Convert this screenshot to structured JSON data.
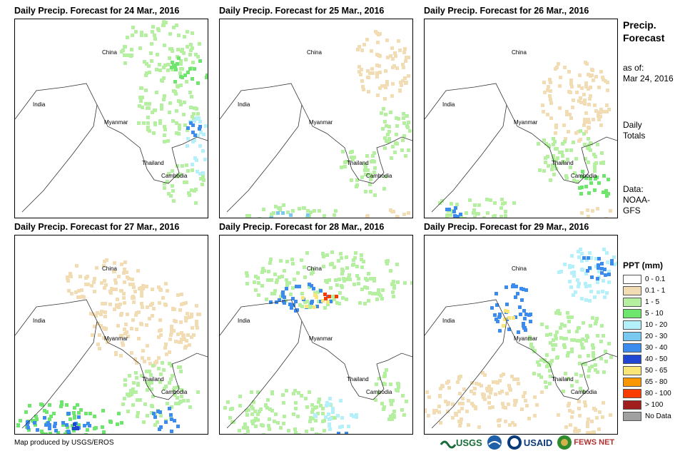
{
  "panels": [
    {
      "title": "Daily Precip. Forecast for 24 Mar., 2016"
    },
    {
      "title": "Daily Precip. Forecast for 25 Mar., 2016"
    },
    {
      "title": "Daily Precip. Forecast for 26 Mar., 2016"
    },
    {
      "title": "Daily Precip. Forecast for 27 Mar., 2016"
    },
    {
      "title": "Daily Precip. Forecast for 28 Mar., 2016"
    },
    {
      "title": "Daily Precip. Forecast for 29 Mar., 2016"
    }
  ],
  "map_labels": {
    "china": "China",
    "india": "India",
    "myanmar": "Myanmar",
    "thailand": "Thailand",
    "cambodia": "Cambodia"
  },
  "side": {
    "title_line1": "Precip.",
    "title_line2": "Forecast",
    "asof_line1": "as of:",
    "asof_line2": "Mar 24, 2016",
    "totals_line1": "Daily",
    "totals_line2": "Totals",
    "data_line1": "Data:",
    "data_line2": "NOAA-",
    "data_line3": "GFS"
  },
  "legend": {
    "title": "PPT (mm)",
    "items": [
      {
        "label": "0 - 0.1",
        "color": "#ffffff"
      },
      {
        "label": "0.1 - 1",
        "color": "#f2dcb4"
      },
      {
        "label": "1 - 5",
        "color": "#b4f0a0"
      },
      {
        "label": "5 - 10",
        "color": "#6ee66e"
      },
      {
        "label": "10 - 20",
        "color": "#b4f0fa"
      },
      {
        "label": "20 - 30",
        "color": "#78c8f0"
      },
      {
        "label": "30 - 40",
        "color": "#3c8cf0"
      },
      {
        "label": "40 - 50",
        "color": "#1e46d2"
      },
      {
        "label": "50 - 65",
        "color": "#fae678"
      },
      {
        "label": "65 - 80",
        "color": "#fa9600"
      },
      {
        "label": "80 - 100",
        "color": "#fa3c00"
      },
      {
        "label": "> 100",
        "color": "#a01e1e"
      },
      {
        "label": "No Data",
        "color": "#a0a0a0"
      }
    ]
  },
  "footer": "Map produced by USGS/EROS",
  "logos": {
    "usgs": "USGS",
    "usaid": "USAID",
    "fewsnet": "FEWS NET"
  }
}
